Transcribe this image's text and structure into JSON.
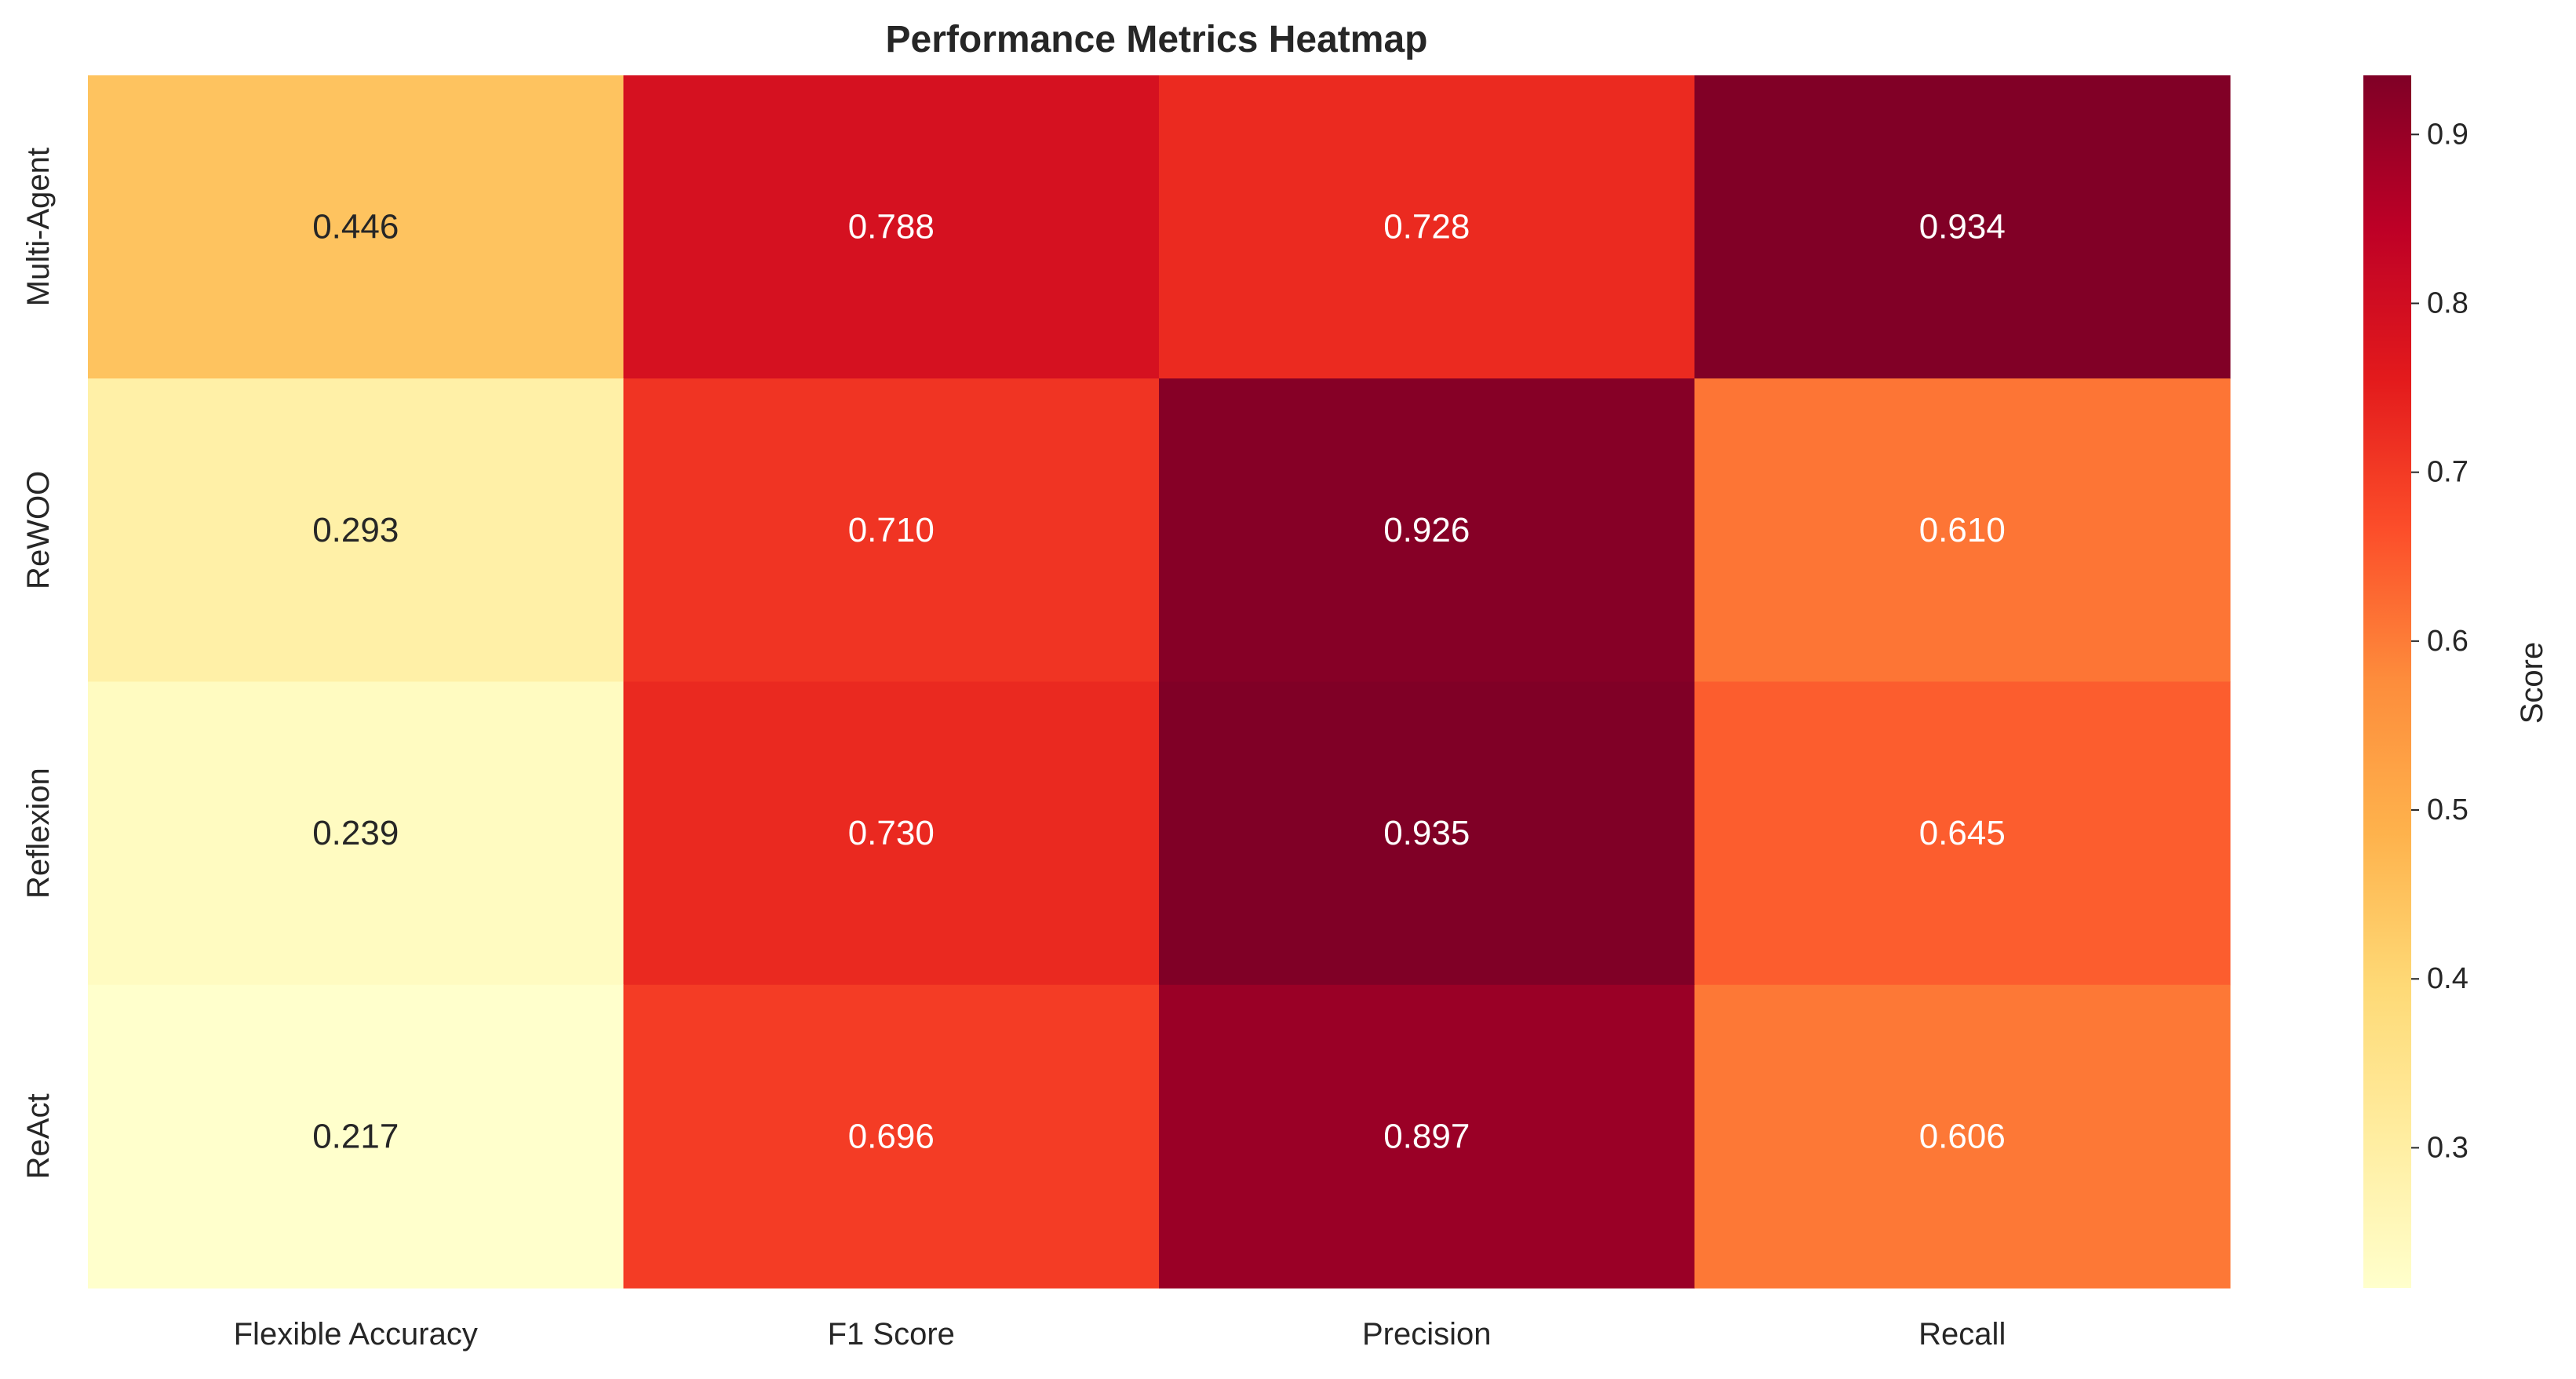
{
  "chart_data": {
    "type": "heatmap",
    "title": "Performance Metrics Heatmap",
    "xlabel": "",
    "ylabel": "",
    "columns": [
      "Flexible Accuracy",
      "F1 Score",
      "Precision",
      "Recall"
    ],
    "rows": [
      "Multi-Agent",
      "ReWOO",
      "Reflexion",
      "ReAct"
    ],
    "values": [
      [
        0.446,
        0.788,
        0.728,
        0.934
      ],
      [
        0.293,
        0.71,
        0.926,
        0.61
      ],
      [
        0.239,
        0.73,
        0.935,
        0.645
      ],
      [
        0.217,
        0.696,
        0.897,
        0.606
      ]
    ],
    "value_format": "0.000",
    "colormap": "YlOrRd",
    "colorbar": {
      "label": "Score",
      "range": [
        0.217,
        0.935
      ],
      "ticks": [
        0.3,
        0.4,
        0.5,
        0.6,
        0.7,
        0.8,
        0.9
      ],
      "tick_labels": [
        "0.3",
        "0.4",
        "0.5",
        "0.6",
        "0.7",
        "0.8",
        "0.9"
      ]
    },
    "grid": false,
    "colors": {
      "low": "#ffffcc",
      "high": "#800026",
      "text_dark": "#262626",
      "text_light": "#ffffff"
    }
  }
}
